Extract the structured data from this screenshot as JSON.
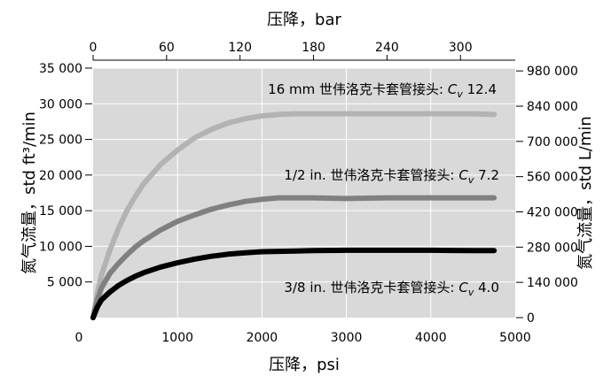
{
  "chart_data": {
    "type": "line",
    "xlabel": "压降，psi",
    "x2label": "压降，bar",
    "ylabel": "氮气流量，std ft³/min",
    "y2label": "氮气流量，std L/min",
    "xlim": [
      0,
      5000
    ],
    "ylim": [
      0,
      35000
    ],
    "x2lim": [
      0,
      344.7
    ],
    "y2lim": [
      0,
      991100
    ],
    "x_ticks": [
      0,
      1000,
      2000,
      3000,
      4000,
      5000
    ],
    "x_tick_labels": [
      "0",
      "1000",
      "2000",
      "3000",
      "4000",
      "5000"
    ],
    "y_ticks": [
      5000,
      10000,
      15000,
      20000,
      25000,
      30000,
      35000
    ],
    "y_tick_labels": [
      "5 000",
      "10 000",
      "15 000",
      "20 000",
      "25 000",
      "30 000",
      "35 000"
    ],
    "x2_ticks": [
      0,
      60,
      120,
      180,
      240,
      300
    ],
    "x2_tick_labels": [
      "0",
      "60",
      "120",
      "180",
      "240",
      "300"
    ],
    "y2_ticks": [
      0,
      140000,
      280000,
      420000,
      560000,
      700000,
      840000,
      980000
    ],
    "y2_tick_labels": [
      "0",
      "140 000",
      "280 000",
      "420 000",
      "560 000",
      "700 000",
      "840 000",
      "980 000"
    ],
    "grid": true,
    "background": "#d9d9d9",
    "series": [
      {
        "name": "16 mm 世伟洛克卡套管接头: Cv 12.4",
        "label_prefix": "16 mm 世伟洛克卡套管接头: ",
        "cv_symbol": "C",
        "cv_sub": "v",
        "cv_value": "12.4",
        "color": "#b3b3b3",
        "x": [
          0,
          50,
          100,
          200,
          300,
          400,
          500,
          600,
          800,
          1000,
          1200,
          1400,
          1600,
          1800,
          2000,
          2200,
          2400,
          2600,
          3000,
          3500,
          4000,
          4500,
          4750
        ],
        "y": [
          0,
          3500,
          6000,
          9500,
          12500,
          15000,
          17000,
          18800,
          21500,
          23500,
          25200,
          26400,
          27300,
          27900,
          28300,
          28500,
          28600,
          28600,
          28600,
          28600,
          28600,
          28600,
          28500
        ]
      },
      {
        "name": "1/2 in. 世伟洛克卡套管接头: Cv 7.2",
        "label_prefix": "1/2 in. 世伟洛克卡套管接头: ",
        "cv_symbol": "C",
        "cv_sub": "v",
        "cv_value": "7.2",
        "color": "#808080",
        "x": [
          0,
          50,
          100,
          200,
          300,
          400,
          500,
          600,
          800,
          1000,
          1200,
          1400,
          1600,
          1800,
          2000,
          2200,
          2400,
          2600,
          3000,
          3500,
          4000,
          4500,
          4750
        ],
        "y": [
          0,
          2500,
          4200,
          6200,
          7600,
          8800,
          9900,
          10800,
          12300,
          13500,
          14400,
          15200,
          15800,
          16300,
          16600,
          16800,
          16800,
          16800,
          16700,
          16800,
          16800,
          16800,
          16800
        ]
      },
      {
        "name": "3/8 in. 世伟洛克卡套管接头: Cv 4.0",
        "label_prefix": "3/8 in. 世伟洛克卡套管接头: ",
        "cv_symbol": "C",
        "cv_sub": "v",
        "cv_value": "4.0",
        "color": "#000000",
        "x": [
          0,
          50,
          100,
          200,
          300,
          400,
          500,
          600,
          800,
          1000,
          1200,
          1400,
          1600,
          1800,
          2000,
          2200,
          2400,
          2600,
          3000,
          3500,
          4000,
          4500,
          4750
        ],
        "y": [
          0,
          1500,
          2500,
          3600,
          4500,
          5200,
          5800,
          6300,
          7100,
          7700,
          8200,
          8600,
          8900,
          9100,
          9250,
          9300,
          9350,
          9400,
          9450,
          9450,
          9450,
          9400,
          9400
        ]
      }
    ]
  }
}
